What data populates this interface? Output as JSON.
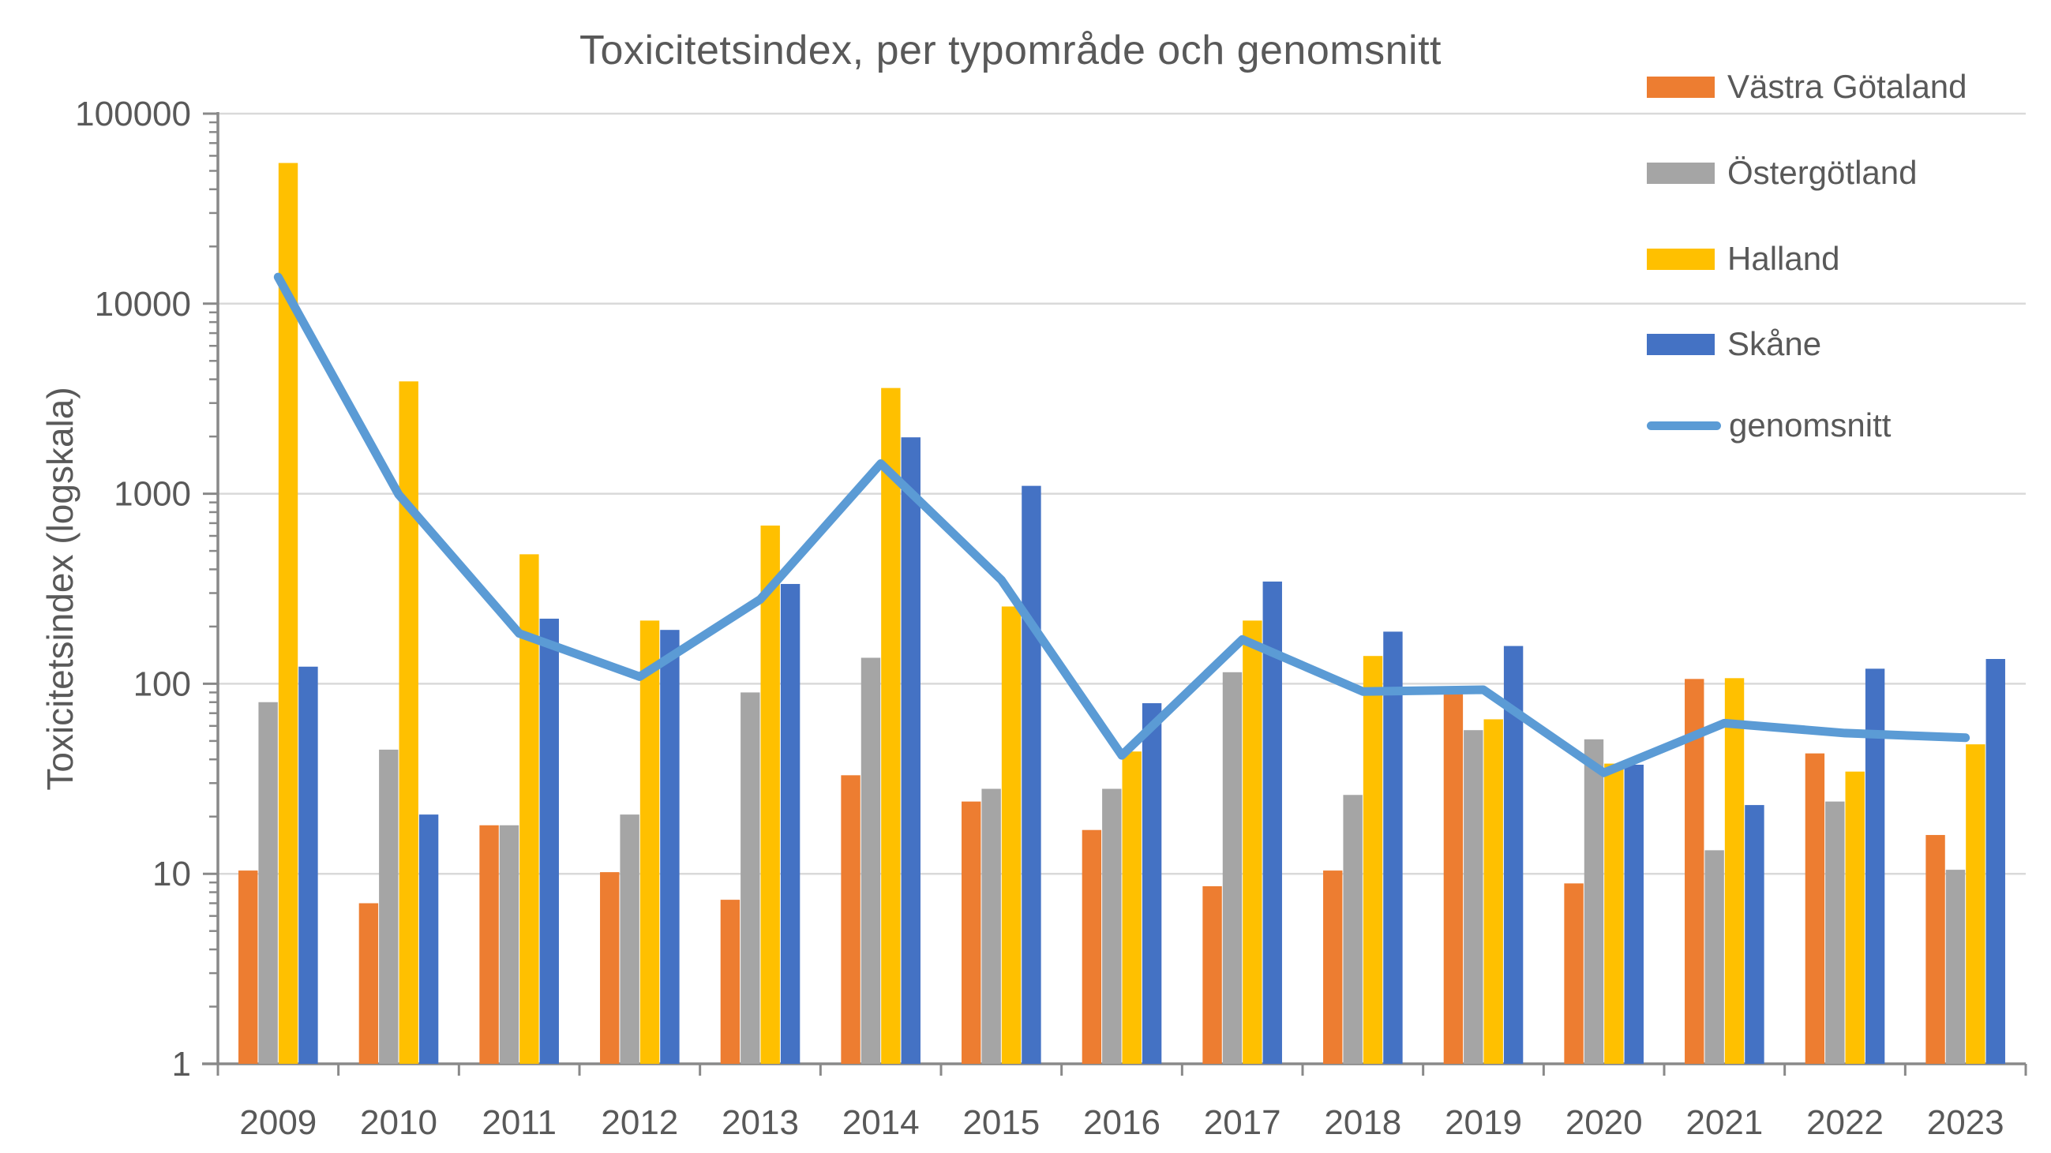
{
  "title": "Toxicitetsindex, per typområde och genomsnitt",
  "colors": {
    "vastra_gotaland": "#ED7D31",
    "ostergotland": "#A5A5A5",
    "halland": "#FFC000",
    "skane": "#4472C4",
    "genomsnitt_line": "#5B9BD5",
    "gridline": "#D9D9D9",
    "axis": "#898989",
    "text": "#595959"
  },
  "chart_data": {
    "type": "bar",
    "subtype": "grouped-bars-with-line-overlay",
    "title": "Toxicitetsindex, per typområde och genomsnitt",
    "ylabel": "Toxicitetsindex (logskala)",
    "xlabel": "",
    "y_scale": "log10",
    "ylim": [
      1,
      100000
    ],
    "y_ticks": [
      "1",
      "10",
      "100",
      "1000",
      "10000",
      "100000"
    ],
    "grid": true,
    "legend_position": "right-top",
    "categories": [
      "2009",
      "2010",
      "2011",
      "2012",
      "2013",
      "2014",
      "2015",
      "2016",
      "2017",
      "2018",
      "2019",
      "2020",
      "2021",
      "2022",
      "2023"
    ],
    "series": [
      {
        "name": "Västra Götaland",
        "type": "bar",
        "color": "#ED7D31",
        "values": [
          10.4,
          7,
          18,
          10.2,
          7.3,
          33,
          24,
          17,
          8.6,
          10.4,
          92,
          8.9,
          106,
          43,
          16
        ]
      },
      {
        "name": "Östergötland",
        "type": "bar",
        "color": "#A5A5A5",
        "values": [
          80,
          45,
          18,
          20.5,
          90,
          137,
          28,
          28,
          115,
          26,
          57,
          51,
          13.3,
          24,
          10.5
        ]
      },
      {
        "name": "Halland",
        "type": "bar",
        "color": "#FFC000",
        "values": [
          55000,
          3900,
          480,
          215,
          680,
          3600,
          255,
          44,
          215,
          140,
          65,
          38,
          107,
          34.5,
          48
        ]
      },
      {
        "name": "Skåne",
        "type": "bar",
        "color": "#4472C4",
        "values": [
          123,
          20.5,
          220,
          192,
          335,
          1980,
          1100,
          79,
          345,
          188,
          158,
          37.5,
          23,
          120,
          135
        ]
      },
      {
        "name": "genomsnitt",
        "type": "line",
        "color": "#5B9BD5",
        "values": [
          13800,
          990,
          184,
          109,
          278,
          1440,
          352,
          42,
          171,
          91,
          93,
          34,
          62,
          55,
          52
        ]
      }
    ]
  }
}
